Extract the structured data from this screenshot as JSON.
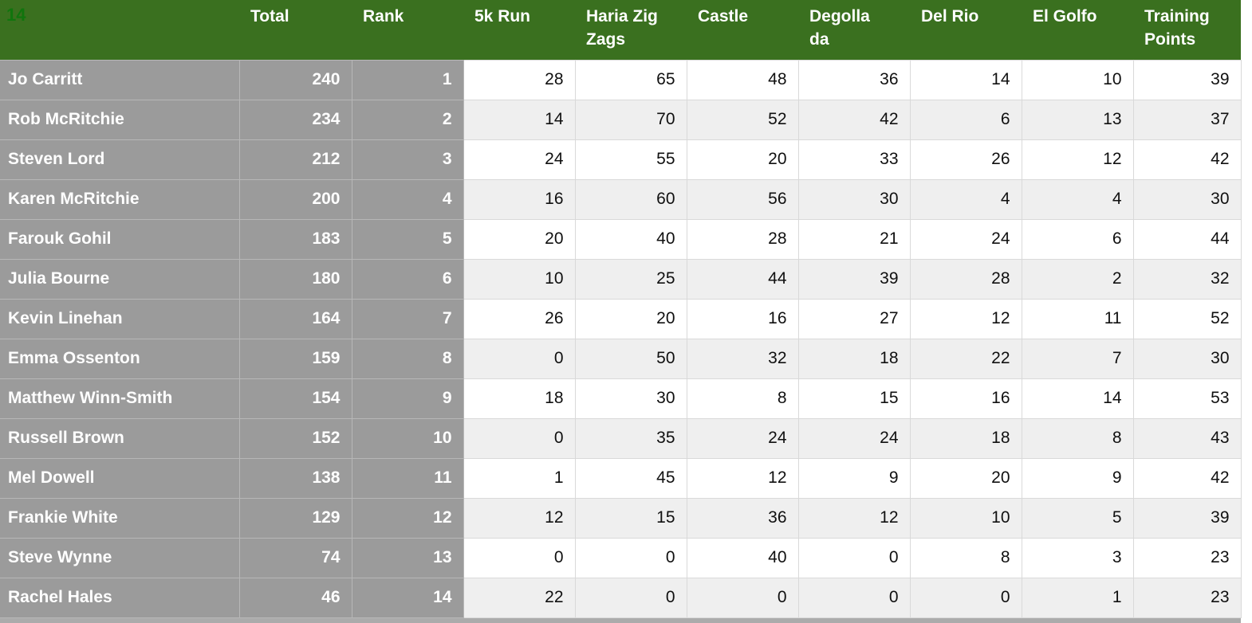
{
  "colors": {
    "header_green": "#3A701F",
    "corner_green": "#10750D",
    "cell_gray": "#9B9B9B",
    "gray_border": "#B7B7B7",
    "grid_border": "#D9D9D9",
    "alt_row": "#EFEFEF",
    "strip_gray": "#ABABAB"
  },
  "sheet": {
    "corner_label": "14",
    "columns": [
      {
        "label": "Total"
      },
      {
        "label": "Rank"
      },
      {
        "label": "5k Run"
      },
      {
        "label": "Haria Zig Zags"
      },
      {
        "label": "Castle"
      },
      {
        "label": "Degollada"
      },
      {
        "label": "Del Rio"
      },
      {
        "label": "El Golfo"
      },
      {
        "label": "Training Points"
      }
    ],
    "rows": [
      {
        "name": "Jo Carritt",
        "total": 240,
        "rank": 1,
        "scores": [
          28,
          65,
          48,
          36,
          14,
          10,
          39
        ]
      },
      {
        "name": "Rob McRitchie",
        "total": 234,
        "rank": 2,
        "scores": [
          14,
          70,
          52,
          42,
          6,
          13,
          37
        ]
      },
      {
        "name": "Steven Lord",
        "total": 212,
        "rank": 3,
        "scores": [
          24,
          55,
          20,
          33,
          26,
          12,
          42
        ]
      },
      {
        "name": "Karen McRitchie",
        "total": 200,
        "rank": 4,
        "scores": [
          16,
          60,
          56,
          30,
          4,
          4,
          30
        ]
      },
      {
        "name": "Farouk Gohil",
        "total": 183,
        "rank": 5,
        "scores": [
          20,
          40,
          28,
          21,
          24,
          6,
          44
        ]
      },
      {
        "name": "Julia Bourne",
        "total": 180,
        "rank": 6,
        "scores": [
          10,
          25,
          44,
          39,
          28,
          2,
          32
        ]
      },
      {
        "name": "Kevin Linehan",
        "total": 164,
        "rank": 7,
        "scores": [
          26,
          20,
          16,
          27,
          12,
          11,
          52
        ]
      },
      {
        "name": "Emma Ossenton",
        "total": 159,
        "rank": 8,
        "scores": [
          0,
          50,
          32,
          18,
          22,
          7,
          30
        ]
      },
      {
        "name": "Matthew Winn-Smith",
        "total": 154,
        "rank": 9,
        "scores": [
          18,
          30,
          8,
          15,
          16,
          14,
          53
        ]
      },
      {
        "name": "Russell Brown",
        "total": 152,
        "rank": 10,
        "scores": [
          0,
          35,
          24,
          24,
          18,
          8,
          43
        ]
      },
      {
        "name": "Mel Dowell",
        "total": 138,
        "rank": 11,
        "scores": [
          1,
          45,
          12,
          9,
          20,
          9,
          42
        ]
      },
      {
        "name": "Frankie White",
        "total": 129,
        "rank": 12,
        "scores": [
          12,
          15,
          36,
          12,
          10,
          5,
          39
        ]
      },
      {
        "name": "Steve Wynne",
        "total": 74,
        "rank": 13,
        "scores": [
          0,
          0,
          40,
          0,
          8,
          3,
          23
        ]
      },
      {
        "name": "Rachel Hales",
        "total": 46,
        "rank": 14,
        "scores": [
          22,
          0,
          0,
          0,
          0,
          1,
          23
        ]
      }
    ]
  }
}
